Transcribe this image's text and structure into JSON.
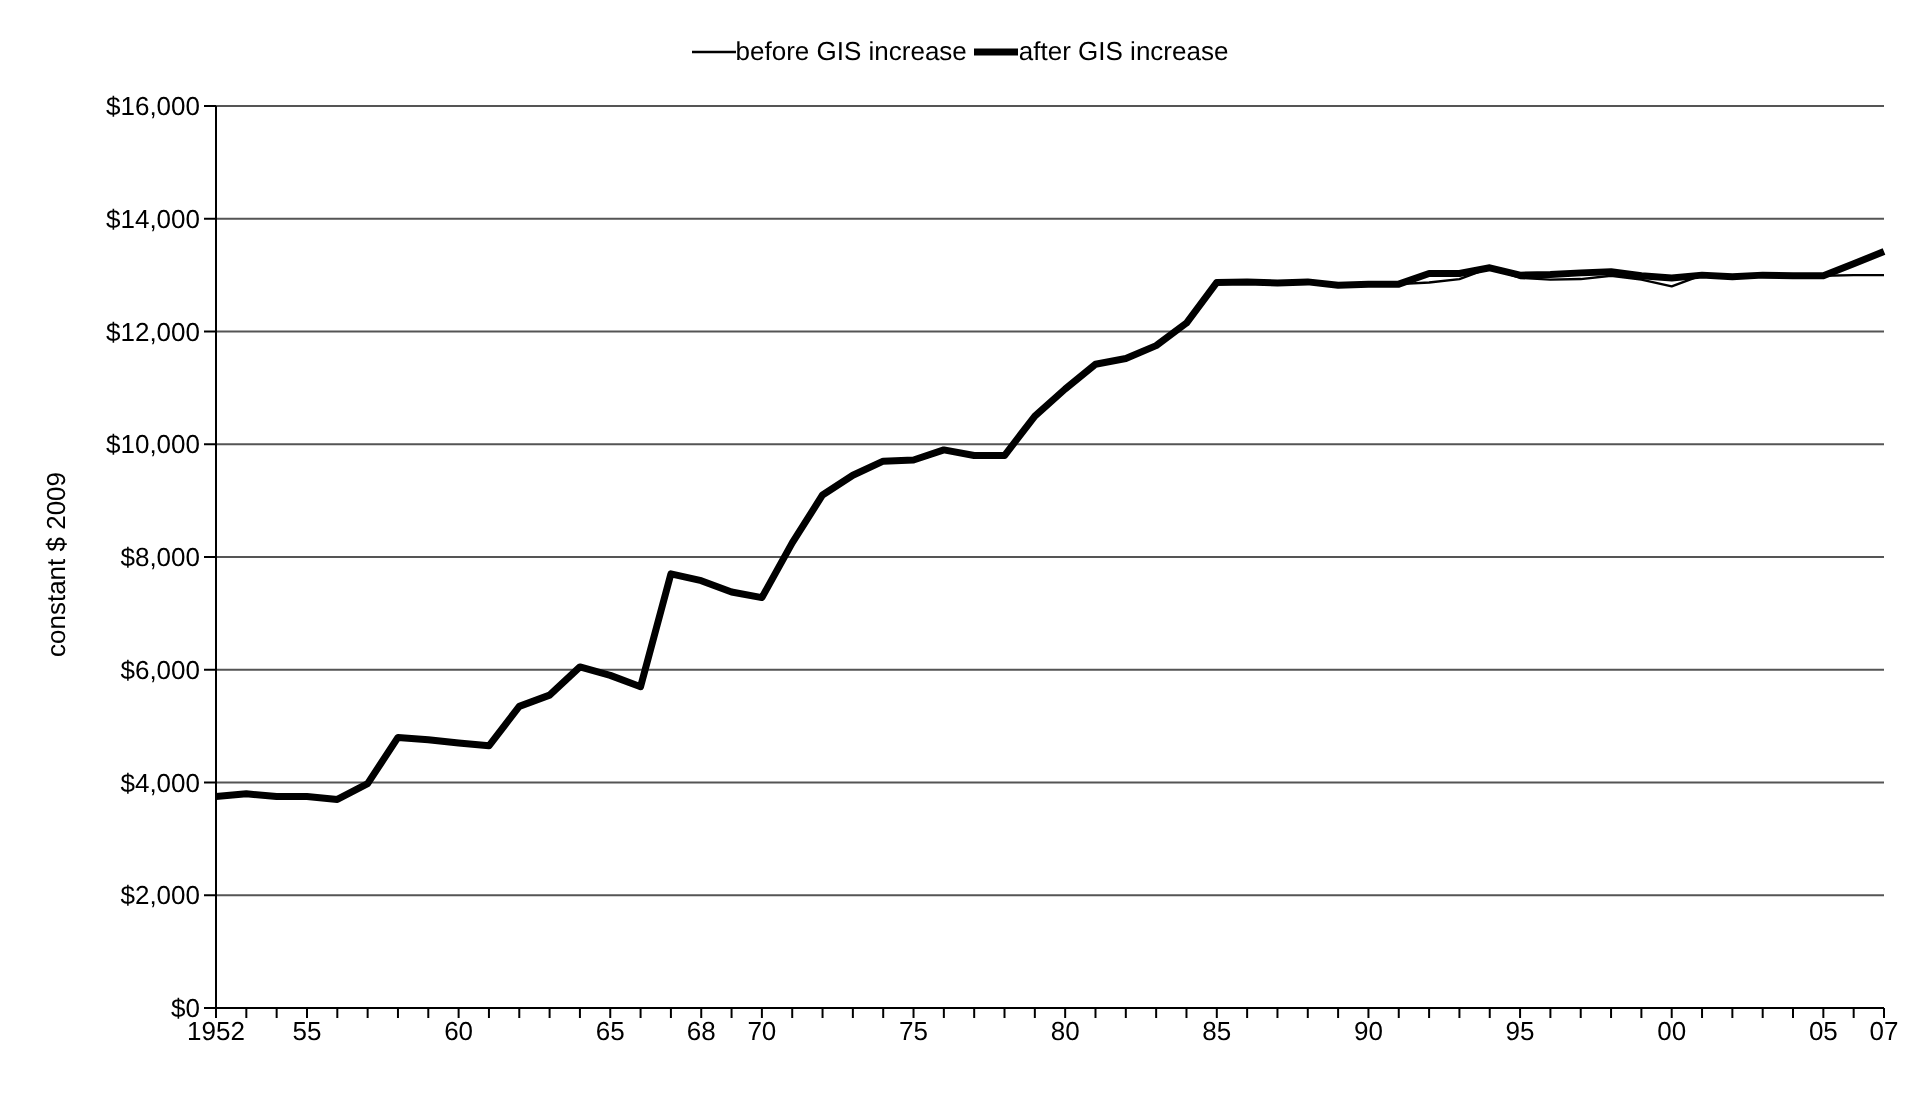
{
  "chart_data": {
    "type": "line",
    "ylabel": "constant $ 2009",
    "categories": [
      "1952",
      null,
      null,
      "55",
      null,
      null,
      null,
      null,
      "60",
      null,
      null,
      null,
      null,
      "65",
      null,
      null,
      "68",
      null,
      "70",
      null,
      null,
      null,
      null,
      "75",
      null,
      null,
      null,
      null,
      "80",
      null,
      null,
      null,
      null,
      "85",
      null,
      null,
      null,
      null,
      "90",
      null,
      null,
      null,
      null,
      "95",
      null,
      null,
      null,
      null,
      "00",
      null,
      null,
      null,
      null,
      "05",
      null,
      "07"
    ],
    "series": [
      {
        "name": "before GIS increase",
        "color": "#000000",
        "values": [
          3750,
          3800,
          3750,
          3750,
          3700,
          3980,
          4800,
          4760,
          4700,
          4650,
          5350,
          5550,
          6050,
          5900,
          5700,
          7700,
          7580,
          7380,
          7280,
          8250,
          9100,
          9450,
          9700,
          9720,
          9900,
          9800,
          9800,
          10500,
          10980,
          11420,
          11520,
          11750,
          12150,
          12870,
          12880,
          12860,
          12880,
          12820,
          12840,
          12840,
          12870,
          12930,
          13130,
          12950,
          12920,
          12930,
          12990,
          12920,
          12800,
          13000,
          12970,
          13000,
          12990,
          12990,
          13000,
          13000
        ]
      },
      {
        "name": "after GIS increase",
        "color": "#000000",
        "values": [
          3750,
          3800,
          3750,
          3750,
          3700,
          3980,
          4800,
          4760,
          4700,
          4650,
          5350,
          5550,
          6050,
          5900,
          5700,
          7700,
          7580,
          7380,
          7280,
          8250,
          9100,
          9450,
          9700,
          9720,
          9900,
          9800,
          9800,
          10500,
          10980,
          11420,
          11520,
          11750,
          12150,
          12870,
          12880,
          12860,
          12880,
          12820,
          12840,
          12840,
          13030,
          13030,
          13130,
          13000,
          13010,
          13040,
          13060,
          12990,
          12950,
          13000,
          12970,
          13000,
          12990,
          12990,
          13200,
          13420
        ]
      }
    ],
    "ylim": [
      0,
      16000
    ],
    "yticks": [
      {
        "value": 0,
        "label": "$0"
      },
      {
        "value": 2000,
        "label": "$2,000"
      },
      {
        "value": 4000,
        "label": "$4,000"
      },
      {
        "value": 6000,
        "label": "$6,000"
      },
      {
        "value": 8000,
        "label": "$8,000"
      },
      {
        "value": 10000,
        "label": "$10,000"
      },
      {
        "value": 12000,
        "label": "$12,000"
      },
      {
        "value": 14000,
        "label": "$14,000"
      },
      {
        "value": 16000,
        "label": "$16,000"
      }
    ],
    "grid": "y",
    "legend": "top",
    "marker": "none",
    "line_style": "solid"
  }
}
